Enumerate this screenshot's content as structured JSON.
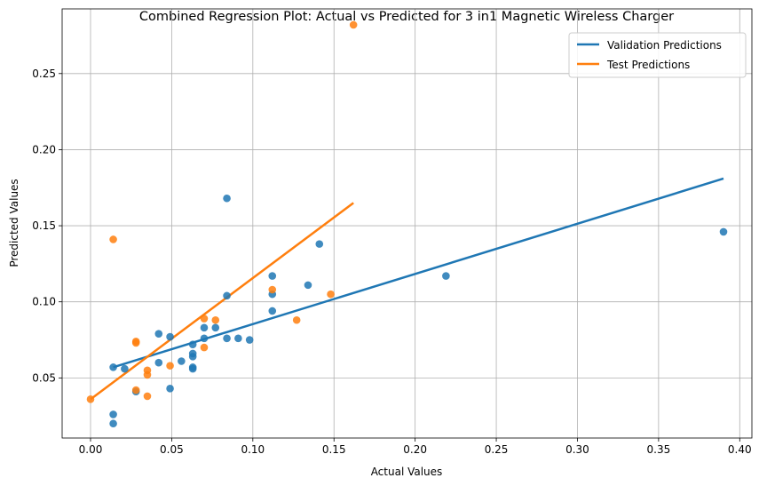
{
  "chart_data": {
    "type": "scatter",
    "title": "Combined Regression Plot: Actual vs Predicted for 3 in1 Magnetic Wireless Charger",
    "xlabel": "Actual Values",
    "ylabel": "Predicted Values",
    "xlim": [
      -0.0175,
      0.4075
    ],
    "ylim": [
      0.0105,
      0.2925
    ],
    "xticks": [
      "0.00",
      "0.05",
      "0.10",
      "0.15",
      "0.20",
      "0.25",
      "0.30",
      "0.35",
      "0.40"
    ],
    "yticks": [
      "0.05",
      "0.10",
      "0.15",
      "0.20",
      "0.25"
    ],
    "xtick_values": [
      0,
      0.05,
      0.1,
      0.15,
      0.2,
      0.25,
      0.3,
      0.35,
      0.4
    ],
    "ytick_values": [
      0.05,
      0.1,
      0.15,
      0.2,
      0.25
    ],
    "grid": true,
    "legend_position": "top-right",
    "series": [
      {
        "name": "Validation Predictions",
        "color": "#1f77b4",
        "points": [
          [
            0.014,
            0.057
          ],
          [
            0.014,
            0.026
          ],
          [
            0.014,
            0.02
          ],
          [
            0.021,
            0.056
          ],
          [
            0.028,
            0.041
          ],
          [
            0.042,
            0.079
          ],
          [
            0.042,
            0.06
          ],
          [
            0.049,
            0.077
          ],
          [
            0.049,
            0.043
          ],
          [
            0.056,
            0.061
          ],
          [
            0.063,
            0.072
          ],
          [
            0.063,
            0.066
          ],
          [
            0.063,
            0.064
          ],
          [
            0.063,
            0.057
          ],
          [
            0.063,
            0.056
          ],
          [
            0.07,
            0.083
          ],
          [
            0.07,
            0.076
          ],
          [
            0.077,
            0.083
          ],
          [
            0.084,
            0.168
          ],
          [
            0.084,
            0.104
          ],
          [
            0.084,
            0.076
          ],
          [
            0.091,
            0.076
          ],
          [
            0.098,
            0.075
          ],
          [
            0.112,
            0.117
          ],
          [
            0.112,
            0.105
          ],
          [
            0.112,
            0.094
          ],
          [
            0.134,
            0.111
          ],
          [
            0.141,
            0.138
          ],
          [
            0.219,
            0.117
          ],
          [
            0.39,
            0.146
          ]
        ],
        "fit_line": [
          [
            0.014,
            0.057
          ],
          [
            0.39,
            0.181
          ]
        ]
      },
      {
        "name": "Test Predictions",
        "color": "#ff7f0e",
        "points": [
          [
            0.0,
            0.036
          ],
          [
            0.014,
            0.141
          ],
          [
            0.028,
            0.074
          ],
          [
            0.028,
            0.073
          ],
          [
            0.028,
            0.042
          ],
          [
            0.035,
            0.055
          ],
          [
            0.035,
            0.052
          ],
          [
            0.035,
            0.038
          ],
          [
            0.049,
            0.058
          ],
          [
            0.07,
            0.089
          ],
          [
            0.07,
            0.07
          ],
          [
            0.077,
            0.088
          ],
          [
            0.112,
            0.108
          ],
          [
            0.127,
            0.088
          ],
          [
            0.148,
            0.105
          ],
          [
            0.162,
            0.282
          ]
        ],
        "fit_line": [
          [
            0.0,
            0.036
          ],
          [
            0.162,
            0.165
          ]
        ]
      }
    ]
  }
}
